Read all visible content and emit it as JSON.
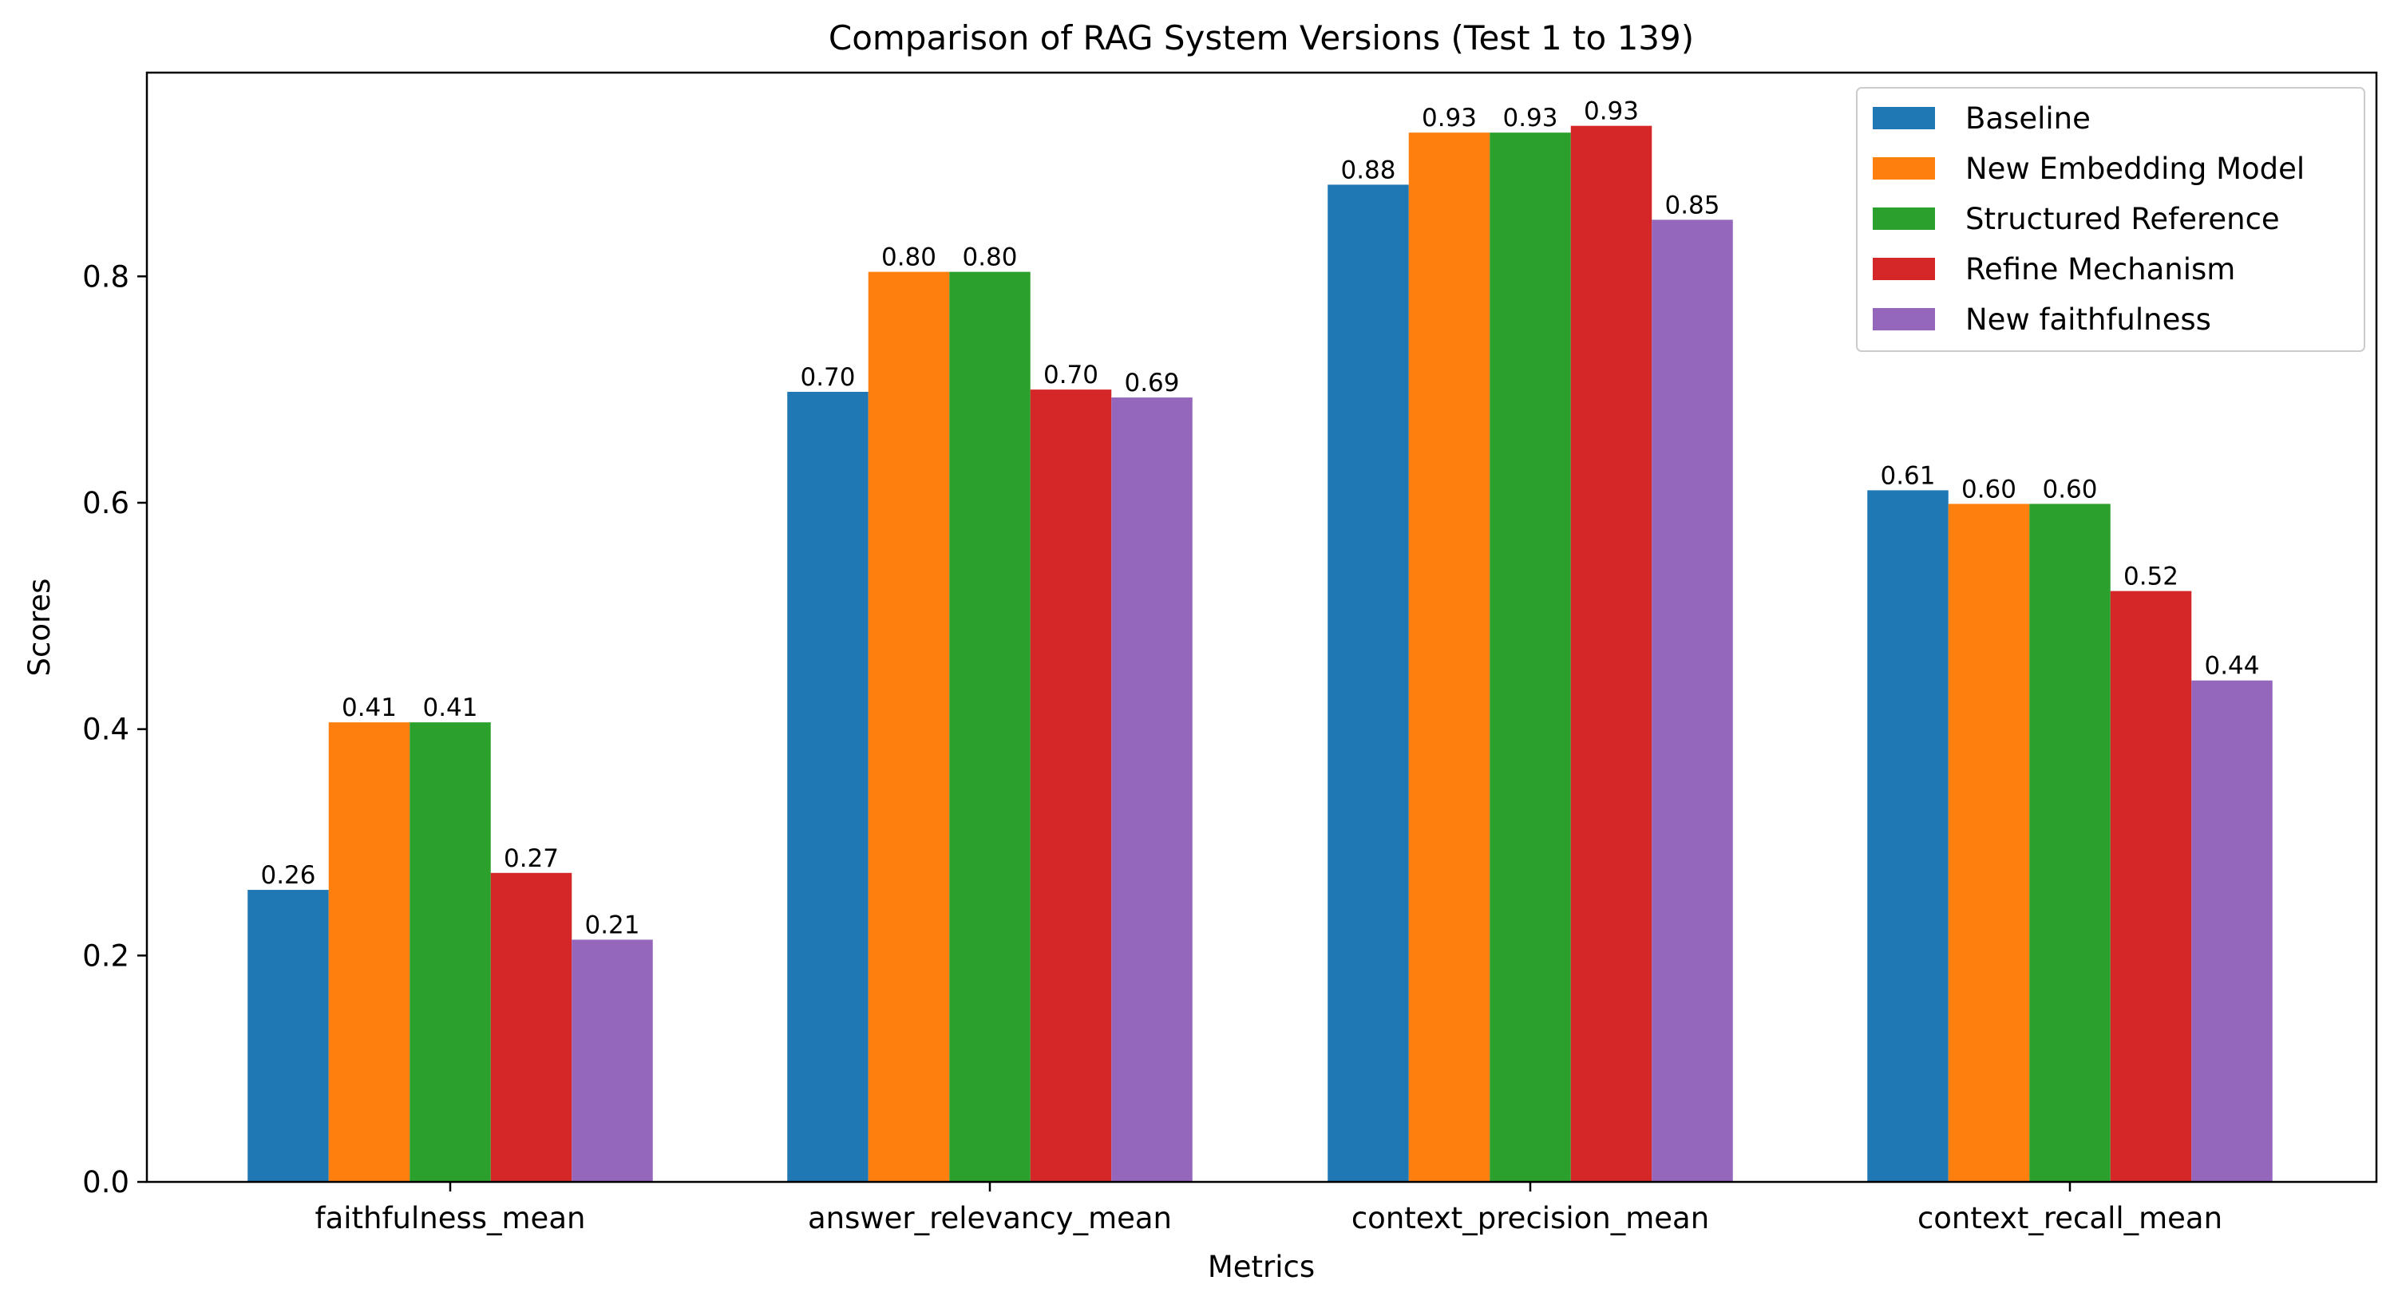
{
  "chart_data": {
    "type": "bar",
    "title": "Comparison of RAG System Versions (Test 1 to 139)",
    "xlabel": "Metrics",
    "ylabel": "Scores",
    "ylim": [
      0,
      0.98
    ],
    "yticks": [
      0.0,
      0.2,
      0.4,
      0.6,
      0.8
    ],
    "ytick_labels": [
      "0.0",
      "0.2",
      "0.4",
      "0.6",
      "0.8"
    ],
    "grid": false,
    "legend_position": "top-right",
    "categories": [
      "faithfulness_mean",
      "answer_relevancy_mean",
      "context_precision_mean",
      "context_recall_mean"
    ],
    "series": [
      {
        "name": "Baseline",
        "color": "#1f77b4",
        "values": [
          0.258,
          0.698,
          0.881,
          0.611
        ],
        "labels": [
          "0.26",
          "0.70",
          "0.88",
          "0.61"
        ]
      },
      {
        "name": "New Embedding Model",
        "color": "#ff7f0e",
        "values": [
          0.406,
          0.804,
          0.927,
          0.599
        ],
        "labels": [
          "0.41",
          "0.80",
          "0.93",
          "0.60"
        ]
      },
      {
        "name": "Structured Reference",
        "color": "#2ca02c",
        "values": [
          0.406,
          0.804,
          0.927,
          0.599
        ],
        "labels": [
          "0.41",
          "0.80",
          "0.93",
          "0.60"
        ]
      },
      {
        "name": "Refine Mechanism",
        "color": "#d62728",
        "values": [
          0.273,
          0.7,
          0.933,
          0.522
        ],
        "labels": [
          "0.27",
          "0.70",
          "0.93",
          "0.52"
        ]
      },
      {
        "name": "New faithfulness",
        "color": "#9467bd",
        "values": [
          0.214,
          0.693,
          0.85,
          0.443
        ],
        "labels": [
          "0.21",
          "0.69",
          "0.85",
          "0.44"
        ]
      }
    ]
  }
}
